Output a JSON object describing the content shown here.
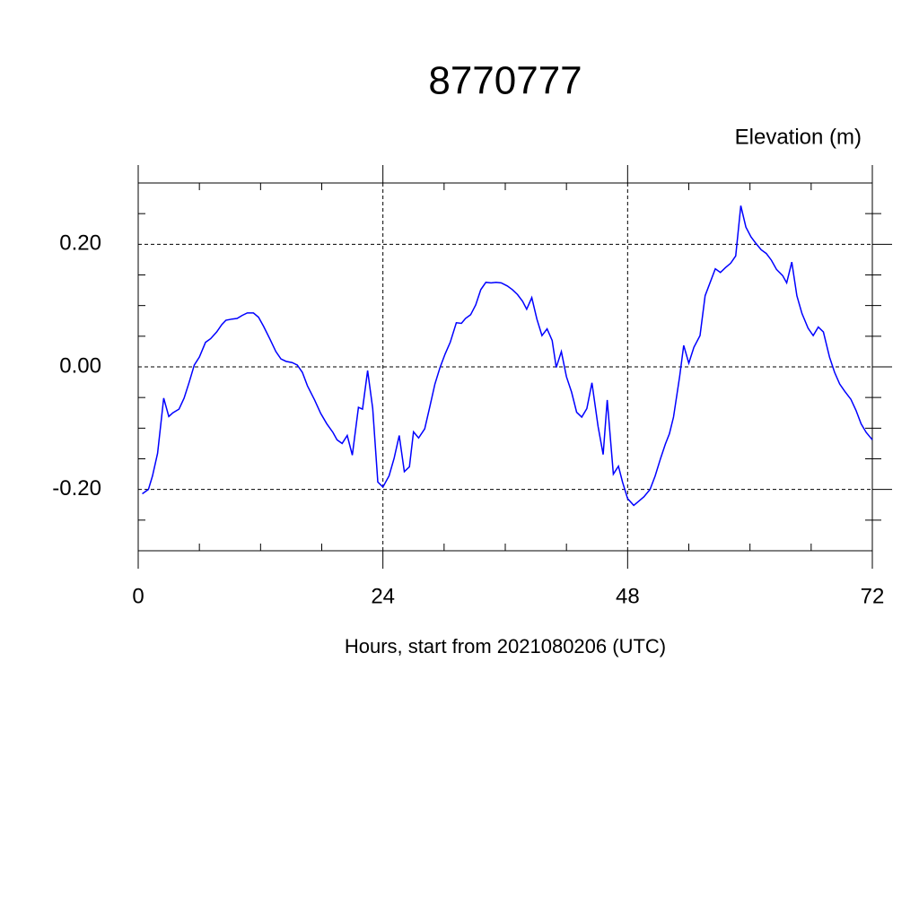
{
  "chart_data": {
    "type": "line",
    "title": "8770777",
    "subtitle": "Elevation (m)",
    "x_label": "Hours, start from 2021080206 (UTC)",
    "xlim": [
      0,
      72
    ],
    "xticks": [
      0,
      24,
      48,
      72
    ],
    "xminorticks": [
      6,
      12,
      18,
      30,
      36,
      42,
      54,
      60,
      66
    ],
    "ylim": [
      -0.3,
      0.3
    ],
    "yticks": [
      {
        "value": -0.2,
        "label": "-0.20"
      },
      {
        "value": 0,
        "label": "0.00"
      },
      {
        "value": 0.2,
        "label": "0.20"
      }
    ],
    "yminorticks": [
      -0.25,
      -0.15,
      -0.1,
      -0.05,
      0.05,
      0.1,
      0.15,
      0.25
    ],
    "grid": true,
    "series": [
      {
        "color": "#0000ff",
        "x": [
          0.4,
          1.0,
          1.4,
          1.9,
          2.5,
          3.0,
          3.4,
          4.0,
          4.5,
          5.0,
          5.5,
          6.0,
          6.6,
          7.1,
          7.7,
          8.2,
          8.6,
          9.2,
          9.7,
          10.2,
          10.7,
          11.3,
          11.8,
          12.3,
          12.9,
          13.5,
          14.0,
          14.5,
          15.1,
          15.6,
          16.1,
          16.6,
          17.3,
          17.9,
          18.5,
          19.1,
          19.5,
          20.0,
          20.5,
          21.0,
          21.6,
          22.0,
          22.5,
          23.0,
          23.5,
          24.0,
          24.6,
          25.1,
          25.6,
          26.1,
          26.6,
          27.0,
          27.5,
          28.1,
          28.6,
          29.1,
          29.6,
          30.1,
          30.6,
          31.2,
          31.7,
          32.1,
          32.6,
          33.1,
          33.6,
          34.1,
          34.6,
          35.1,
          35.6,
          36.2,
          36.7,
          37.2,
          37.7,
          38.1,
          38.6,
          39.1,
          39.6,
          40.1,
          40.6,
          41.0,
          41.5,
          42.0,
          42.5,
          43.0,
          43.5,
          44.0,
          44.5,
          45.1,
          45.6,
          46.0,
          46.6,
          47.1,
          47.5,
          48.0,
          48.6,
          49.1,
          49.6,
          50.2,
          50.7,
          51.2,
          51.7,
          52.1,
          52.5,
          53.1,
          53.5,
          54.0,
          54.5,
          55.1,
          55.6,
          56.1,
          56.6,
          57.1,
          57.6,
          58.1,
          58.6,
          59.1,
          59.6,
          60.1,
          60.6,
          61.1,
          61.6,
          62.1,
          62.6,
          63.2,
          63.6,
          64.1,
          64.6,
          65.1,
          65.7,
          66.2,
          66.7,
          67.2,
          67.8,
          68.3,
          68.8,
          69.3,
          69.9,
          70.4,
          70.9,
          71.4,
          72.0
        ],
        "values": [
          -0.207,
          -0.2,
          -0.178,
          -0.141,
          -0.051,
          -0.081,
          -0.075,
          -0.069,
          -0.051,
          -0.025,
          0.003,
          0.016,
          0.04,
          0.046,
          0.057,
          0.069,
          0.076,
          0.078,
          0.079,
          0.084,
          0.088,
          0.088,
          0.081,
          0.066,
          0.046,
          0.025,
          0.013,
          0.009,
          0.007,
          0.003,
          -0.009,
          -0.031,
          -0.054,
          -0.076,
          -0.093,
          -0.107,
          -0.119,
          -0.125,
          -0.112,
          -0.144,
          -0.066,
          -0.069,
          -0.006,
          -0.068,
          -0.188,
          -0.196,
          -0.178,
          -0.149,
          -0.112,
          -0.171,
          -0.163,
          -0.106,
          -0.116,
          -0.101,
          -0.065,
          -0.028,
          -0.001,
          0.021,
          0.04,
          0.072,
          0.071,
          0.079,
          0.085,
          0.101,
          0.126,
          0.138,
          0.137,
          0.138,
          0.137,
          0.132,
          0.126,
          0.118,
          0.107,
          0.094,
          0.113,
          0.078,
          0.051,
          0.062,
          0.043,
          -0.001,
          0.025,
          -0.016,
          -0.041,
          -0.074,
          -0.082,
          -0.068,
          -0.026,
          -0.097,
          -0.143,
          -0.054,
          -0.175,
          -0.162,
          -0.188,
          -0.215,
          -0.226,
          -0.219,
          -0.212,
          -0.2,
          -0.178,
          -0.151,
          -0.126,
          -0.109,
          -0.082,
          -0.016,
          0.035,
          0.006,
          0.032,
          0.051,
          0.116,
          0.138,
          0.16,
          0.154,
          0.162,
          0.169,
          0.181,
          0.263,
          0.228,
          0.212,
          0.201,
          0.191,
          0.185,
          0.174,
          0.159,
          0.149,
          0.137,
          0.171,
          0.116,
          0.087,
          0.063,
          0.051,
          0.065,
          0.057,
          0.016,
          -0.009,
          -0.028,
          -0.04,
          -0.053,
          -0.071,
          -0.093,
          -0.107,
          -0.119
        ]
      }
    ]
  }
}
